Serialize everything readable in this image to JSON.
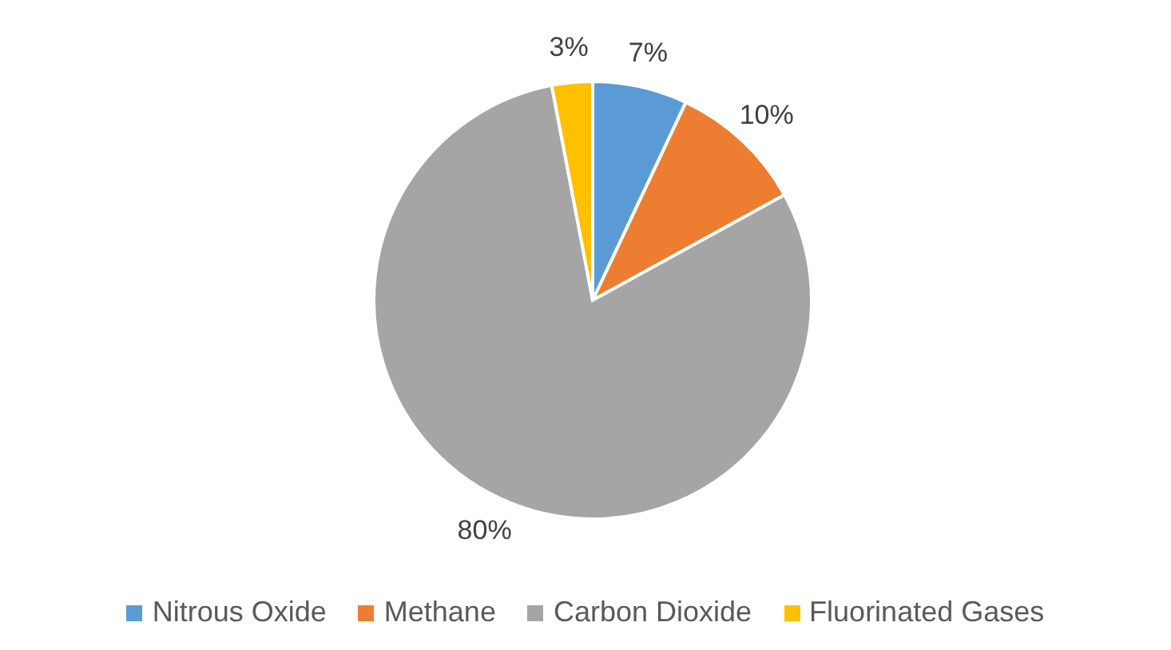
{
  "chart_data": {
    "type": "pie",
    "categories": [
      "Nitrous Oxide",
      "Methane",
      "Carbon Dioxide",
      "Fluorinated Gases"
    ],
    "values": [
      7,
      10,
      80,
      3
    ],
    "colors": [
      "#5b9bd5",
      "#ed7d31",
      "#a5a5a5",
      "#ffc000"
    ],
    "value_labels": [
      "7%",
      "10%",
      "80%",
      "3%"
    ],
    "legend": "bottom"
  }
}
